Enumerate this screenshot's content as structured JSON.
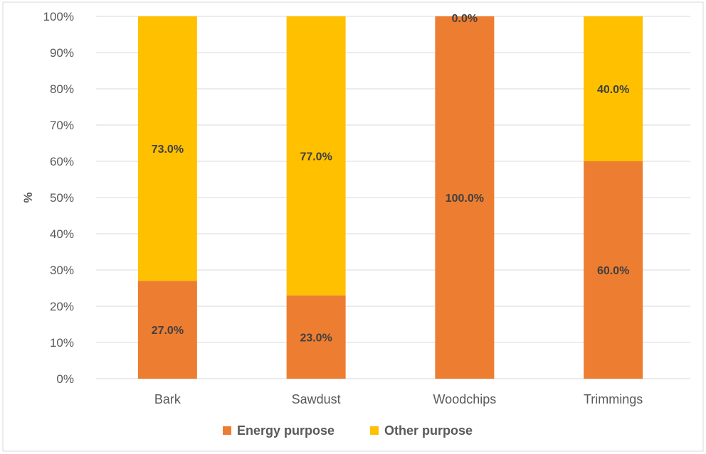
{
  "chart_data": {
    "type": "bar",
    "stacked": "percent",
    "title": "",
    "xlabel": "",
    "ylabel": "%",
    "ylim": [
      0,
      100
    ],
    "yticks": [
      "0%",
      "10%",
      "20%",
      "30%",
      "40%",
      "50%",
      "60%",
      "70%",
      "80%",
      "90%",
      "100%"
    ],
    "grid": true,
    "legend_position": "bottom",
    "categories": [
      "Bark",
      "Sawdust",
      "Woodchips",
      "Trimmings"
    ],
    "series": [
      {
        "name": "Energy purpose",
        "color": "#ED7D31",
        "values": [
          27.0,
          23.0,
          100.0,
          60.0
        ],
        "labels": [
          "27.0%",
          "23.0%",
          "100.0%",
          "60.0%"
        ]
      },
      {
        "name": "Other purpose",
        "color": "#FFC000",
        "values": [
          73.0,
          77.0,
          0.0,
          40.0
        ],
        "labels": [
          "73.0%",
          "77.0%",
          "0.0%",
          "40.0%"
        ]
      }
    ]
  }
}
